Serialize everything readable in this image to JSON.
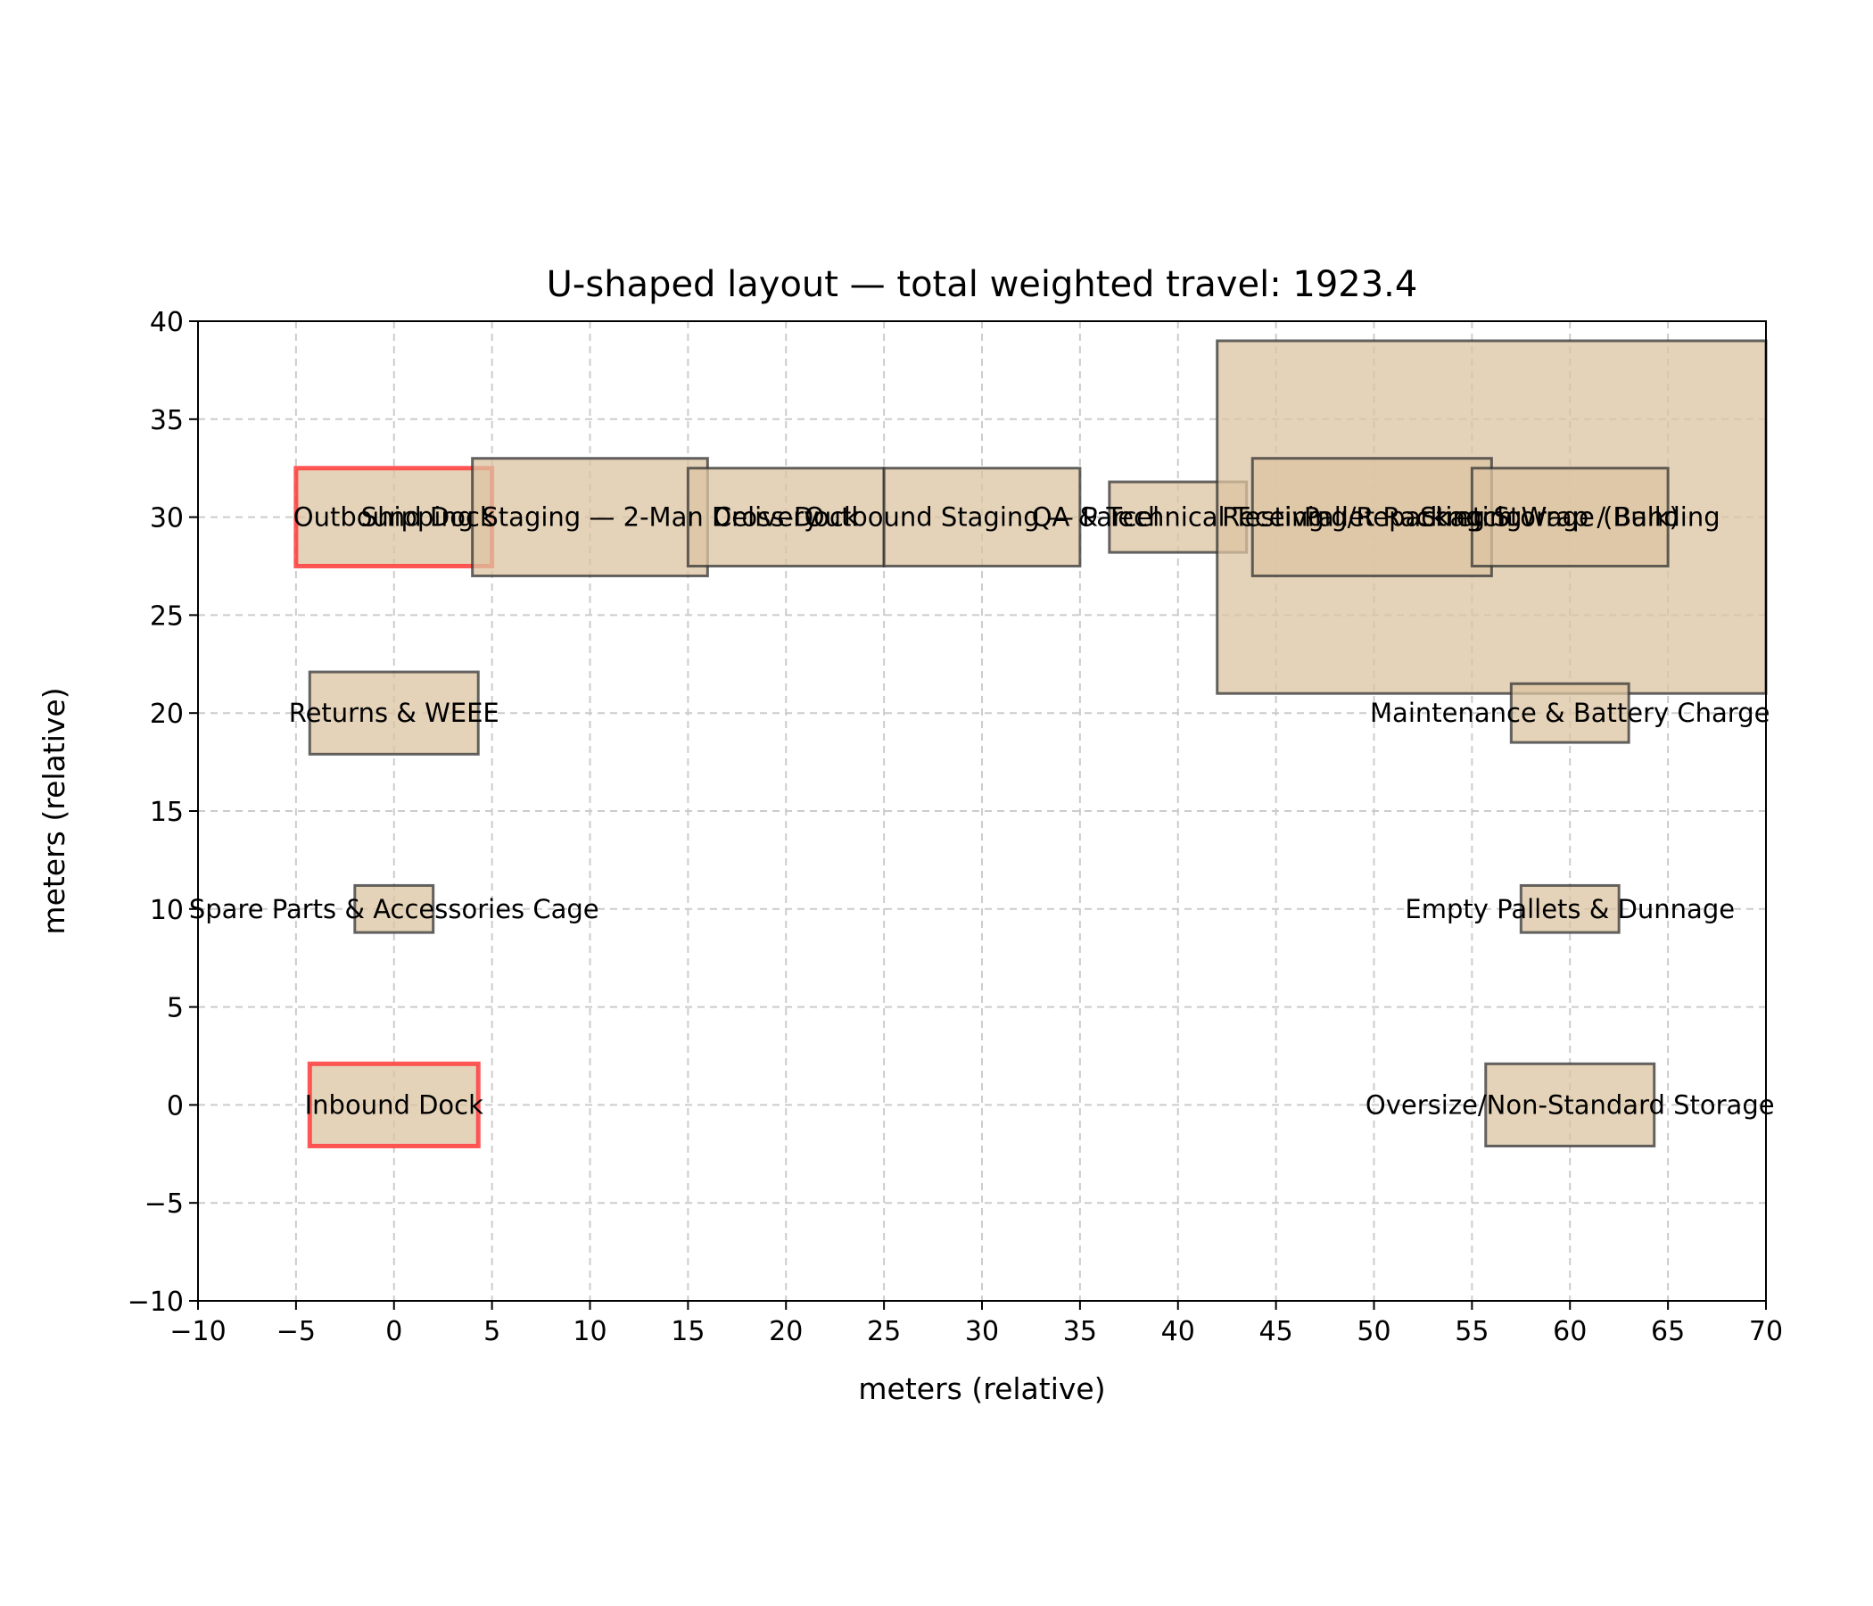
{
  "chart_data": {
    "type": "layout",
    "title": "U-shaped layout — total weighted travel: 1923.4",
    "xlabel": "meters (relative)",
    "ylabel": "meters (relative)",
    "xlim": [
      -10,
      70
    ],
    "ylim": [
      -10,
      40
    ],
    "xticks": [
      -10,
      -5,
      0,
      5,
      10,
      15,
      20,
      25,
      30,
      35,
      40,
      45,
      50,
      55,
      60,
      65,
      70
    ],
    "yticks": [
      -10,
      -5,
      0,
      5,
      10,
      15,
      20,
      25,
      30,
      35,
      40
    ],
    "grid": true,
    "fill_color": "#dcc4a2",
    "edge_color": "#333333",
    "highlight_color": "#ff3b3b",
    "zones": [
      {
        "name": "Inbound Dock",
        "x": [
          -4.3,
          4.3
        ],
        "y": [
          -2.1,
          2.1
        ],
        "highlight": true
      },
      {
        "name": "Spare Parts & Accessories Cage",
        "x": [
          -2.0,
          2.0
        ],
        "y": [
          8.8,
          11.2
        ],
        "highlight": false
      },
      {
        "name": "Returns & WEEE",
        "x": [
          -4.3,
          4.3
        ],
        "y": [
          17.9,
          22.1
        ],
        "highlight": false
      },
      {
        "name": "Outbound Dock",
        "x": [
          -5.0,
          5.0
        ],
        "y": [
          27.5,
          32.5
        ],
        "highlight": true
      },
      {
        "name": "Shipping Staging — 2-Man Delivery",
        "x": [
          4.0,
          16.0
        ],
        "y": [
          27.0,
          33.0
        ],
        "highlight": false
      },
      {
        "name": "Cross-Dock",
        "x": [
          15.0,
          25.0
        ],
        "y": [
          27.5,
          32.5
        ],
        "highlight": false
      },
      {
        "name": "Outbound Staging — Parcel",
        "x": [
          25.0,
          35.0
        ],
        "y": [
          27.5,
          32.5
        ],
        "highlight": false
      },
      {
        "name": "QA & Technical Testing",
        "x": [
          36.5,
          43.5
        ],
        "y": [
          28.2,
          31.8
        ],
        "highlight": false
      },
      {
        "name": "Pallet Racking Storage (Bulk)",
        "x": [
          42.0,
          70.0
        ],
        "y": [
          21.0,
          39.0
        ],
        "highlight": false
      },
      {
        "name": "Receiving/Repackaging",
        "x": [
          43.8,
          56.0
        ],
        "y": [
          27.0,
          33.0
        ],
        "highlight": false
      },
      {
        "name": "Stretch Wrap / Banding",
        "x": [
          55.0,
          65.0
        ],
        "y": [
          27.5,
          32.5
        ],
        "highlight": false
      },
      {
        "name": "Maintenance & Battery Charge",
        "x": [
          57.0,
          63.0
        ],
        "y": [
          18.5,
          21.5
        ],
        "highlight": false
      },
      {
        "name": "Empty Pallets & Dunnage",
        "x": [
          57.5,
          62.5
        ],
        "y": [
          8.8,
          11.2
        ],
        "highlight": false
      },
      {
        "name": "Oversize/Non-Standard Storage",
        "x": [
          55.7,
          64.3
        ],
        "y": [
          -2.1,
          2.1
        ],
        "highlight": false
      }
    ]
  }
}
